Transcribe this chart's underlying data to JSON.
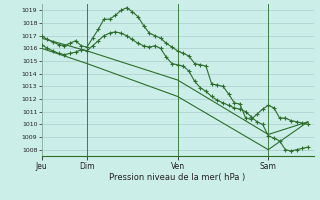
{
  "bg_color": "#cceee8",
  "grid_color": "#aacccc",
  "line_color": "#2d6e2d",
  "xlabel": "Pression niveau de la mer( hPa )",
  "ylim": [
    1007.5,
    1019.5
  ],
  "yticks": [
    1008,
    1009,
    1010,
    1011,
    1012,
    1013,
    1014,
    1015,
    1016,
    1017,
    1018,
    1019
  ],
  "xlim": [
    0,
    48
  ],
  "day_positions": [
    0,
    8,
    24,
    40
  ],
  "day_labels": [
    "Jeu",
    "Dim",
    "Ven",
    "Sam"
  ],
  "series1_x": [
    0,
    1,
    2,
    3,
    4,
    5,
    6,
    7,
    8,
    9,
    10,
    11,
    12,
    13,
    14,
    15,
    16,
    17,
    18,
    19,
    20,
    21,
    22,
    23,
    24,
    25,
    26,
    27,
    28,
    29,
    30,
    31,
    32,
    33,
    34,
    35,
    36,
    37,
    38,
    39,
    40,
    41,
    42,
    43,
    44,
    45,
    46,
    47
  ],
  "series1_y": [
    1017.0,
    1016.7,
    1016.5,
    1016.3,
    1016.2,
    1016.4,
    1016.6,
    1016.2,
    1016.1,
    1016.8,
    1017.5,
    1018.3,
    1018.3,
    1018.6,
    1019.0,
    1019.2,
    1018.9,
    1018.5,
    1017.8,
    1017.2,
    1017.0,
    1016.8,
    1016.4,
    1016.1,
    1015.8,
    1015.6,
    1015.4,
    1014.8,
    1014.7,
    1014.6,
    1013.2,
    1013.1,
    1013.0,
    1012.4,
    1011.7,
    1011.6,
    1010.5,
    1010.4,
    1010.8,
    1011.2,
    1011.5,
    1011.3,
    1010.5,
    1010.5,
    1010.3,
    1010.2,
    1010.1,
    1010.0
  ],
  "series2_x": [
    0,
    8,
    24,
    40,
    47
  ],
  "series2_y": [
    1016.8,
    1015.8,
    1013.5,
    1009.2,
    1010.2
  ],
  "series3_x": [
    0,
    8,
    24,
    40,
    47
  ],
  "series3_y": [
    1016.0,
    1014.8,
    1012.2,
    1008.0,
    1010.2
  ],
  "series4_x": [
    0,
    1,
    2,
    3,
    4,
    5,
    6,
    7,
    8,
    9,
    10,
    11,
    12,
    13,
    14,
    15,
    16,
    17,
    18,
    19,
    20,
    21,
    22,
    23,
    24,
    25,
    26,
    27,
    28,
    29,
    30,
    31,
    32,
    33,
    34,
    35,
    36,
    37,
    38,
    39,
    40,
    41,
    42,
    43,
    44,
    45,
    46,
    47
  ],
  "series4_y": [
    1016.3,
    1016.0,
    1015.8,
    1015.6,
    1015.5,
    1015.6,
    1015.7,
    1015.9,
    1015.8,
    1016.2,
    1016.6,
    1017.0,
    1017.2,
    1017.3,
    1017.2,
    1017.0,
    1016.7,
    1016.4,
    1016.2,
    1016.1,
    1016.2,
    1016.0,
    1015.3,
    1014.8,
    1014.7,
    1014.6,
    1014.2,
    1013.4,
    1012.9,
    1012.6,
    1012.2,
    1011.9,
    1011.7,
    1011.5,
    1011.3,
    1011.2,
    1011.0,
    1010.6,
    1010.2,
    1010.0,
    1009.1,
    1008.9,
    1008.7,
    1008.0,
    1007.9,
    1008.0,
    1008.1,
    1008.2
  ]
}
